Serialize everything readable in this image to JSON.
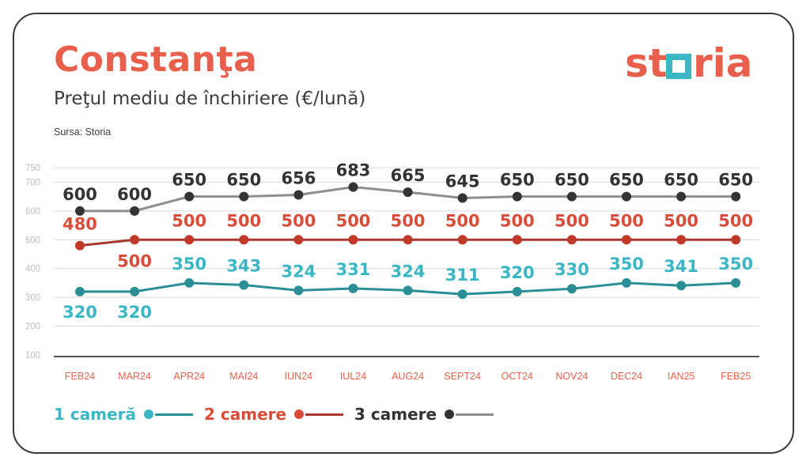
{
  "header": {
    "title": "Constanţa",
    "subtitle": "Preţul mediu de închiriere (€/lună)",
    "source": "Sursa: Storia"
  },
  "logo": {
    "text_left": "st",
    "text_right": "ria",
    "icon": "square-o-icon"
  },
  "colors": {
    "accent": "#e8604c",
    "teal": "#2a8f94",
    "teal_dot": "#3ab6c4",
    "red": "#c0392b",
    "red_dot": "#d94c3a",
    "gray": "#8e8e8e",
    "dark": "#333333",
    "logo_box": "#3ab6c4"
  },
  "legend": [
    {
      "label": "1 cameră",
      "color": "#3ab6c4",
      "line": "#2a8f94"
    },
    {
      "label": "2 camere",
      "color": "#d94c3a",
      "line": "#a8372d"
    },
    {
      "label": "3 camere",
      "color": "#333333",
      "line": "#8e8e8e"
    }
  ],
  "chart_data": {
    "type": "line",
    "categories": [
      "FEB24",
      "MAR24",
      "APR24",
      "MAI24",
      "IUN24",
      "IUL24",
      "AUG24",
      "SEPT24",
      "OCT24",
      "NOV24",
      "DEC24",
      "IAN25",
      "FEB25"
    ],
    "series": [
      {
        "name": "3 camere",
        "values": [
          600,
          600,
          650,
          650,
          656,
          683,
          665,
          645,
          650,
          650,
          650,
          650,
          650
        ],
        "point_color": "#333333",
        "line_color": "#8e8e8e",
        "label_color": "#333333"
      },
      {
        "name": "2 camere",
        "values": [
          480,
          500,
          500,
          500,
          500,
          500,
          500,
          500,
          500,
          500,
          500,
          500,
          500
        ],
        "point_color": "#c0392b",
        "line_color": "#a8372d",
        "label_color": "#d94c3a"
      },
      {
        "name": "1 cameră",
        "values": [
          320,
          320,
          350,
          343,
          324,
          331,
          324,
          311,
          320,
          330,
          350,
          341,
          350
        ],
        "point_color": "#2a8f94",
        "line_color": "#2a8f94",
        "label_color": "#3ab6c4"
      }
    ],
    "y_ticks": [
      100,
      200,
      300,
      400,
      500,
      600,
      700,
      750
    ],
    "ylim": [
      100,
      750
    ],
    "grid": true,
    "legend_position": "bottom-left"
  }
}
